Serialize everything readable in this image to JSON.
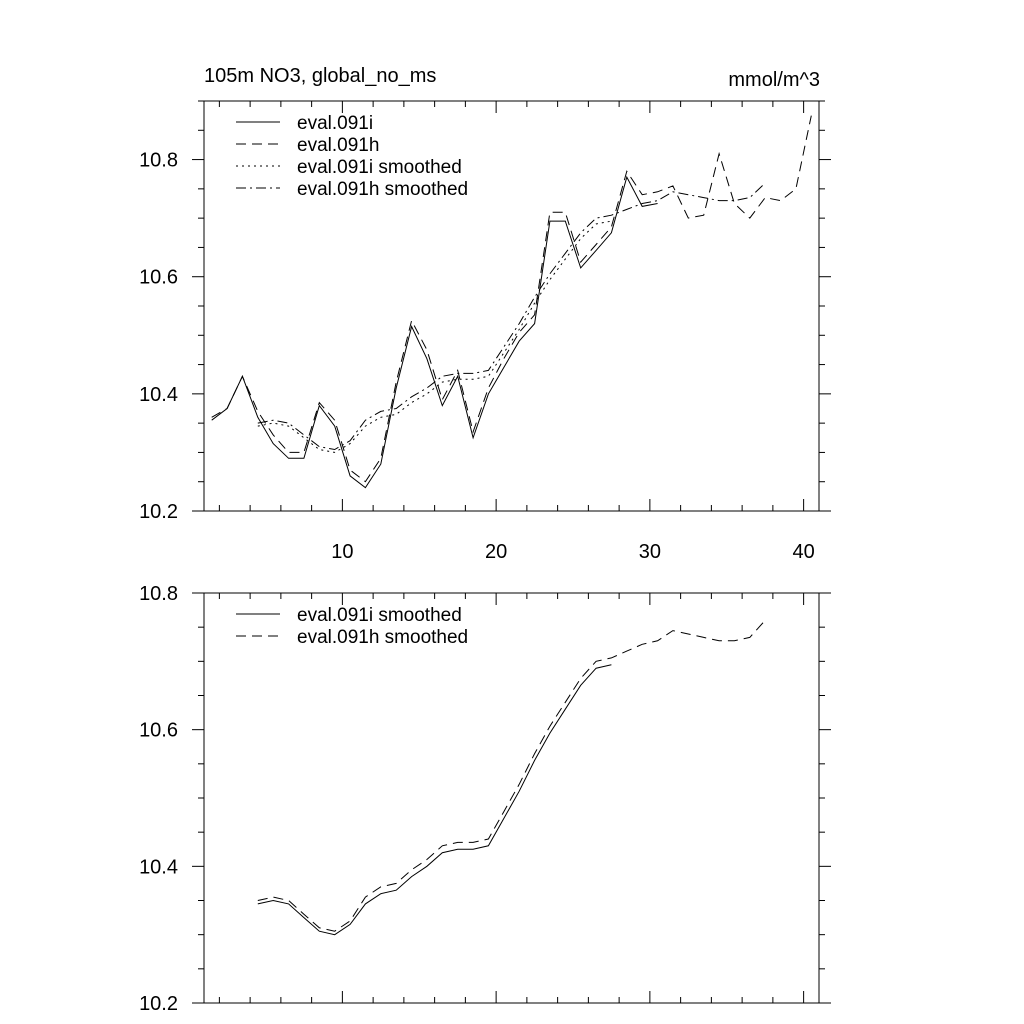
{
  "chart_data": [
    {
      "type": "line",
      "title": "105m NO3, global_no_ms",
      "units": "mmol/m^3",
      "xlim": [
        1,
        41
      ],
      "ylim": [
        10.2,
        10.9
      ],
      "x_ticks": [
        10,
        20,
        30,
        40
      ],
      "y_ticks": [
        10.2,
        10.4,
        10.6,
        10.8
      ],
      "legend_position": "top-left",
      "grid": false,
      "series": [
        {
          "name": "eval.091i",
          "style": "solid",
          "x": [
            1.5,
            2.5,
            3.5,
            4.5,
            5.5,
            6.5,
            7.5,
            8.5,
            9.5,
            10.5,
            11.5,
            12.5,
            13.5,
            14.5,
            15.5,
            16.5,
            17.5,
            18.5,
            19.5,
            20.5,
            21.5,
            22.5,
            23.5,
            24.5,
            25.5,
            26.5,
            27.5,
            28.5,
            29.5,
            30.5
          ],
          "y": [
            10.355,
            10.375,
            10.43,
            10.36,
            10.315,
            10.29,
            10.29,
            10.38,
            10.345,
            10.26,
            10.24,
            10.28,
            10.41,
            10.515,
            10.46,
            10.38,
            10.43,
            10.325,
            10.4,
            10.445,
            10.49,
            10.52,
            10.695,
            10.695,
            10.615,
            10.645,
            10.675,
            10.77,
            10.72,
            10.725
          ]
        },
        {
          "name": "eval.091h",
          "style": "dashed",
          "x": [
            1.5,
            2.5,
            3.5,
            4.5,
            5.5,
            6.5,
            7.5,
            8.5,
            9.5,
            10.5,
            11.5,
            12.5,
            13.5,
            14.5,
            15.5,
            16.5,
            17.5,
            18.5,
            19.5,
            20.5,
            21.5,
            22.5,
            23.5,
            24.5,
            25.5,
            26.5,
            27.5,
            28.5,
            29.5,
            30.5,
            31.5,
            32.5,
            33.5,
            34.5,
            35.5,
            36.5,
            37.5,
            38.5,
            39.5,
            40.5
          ],
          "y": [
            10.36,
            10.375,
            10.43,
            10.37,
            10.33,
            10.3,
            10.3,
            10.385,
            10.355,
            10.27,
            10.25,
            10.29,
            10.42,
            10.525,
            10.475,
            10.39,
            10.44,
            10.335,
            10.41,
            10.46,
            10.505,
            10.535,
            10.71,
            10.71,
            10.625,
            10.655,
            10.685,
            10.78,
            10.74,
            10.745,
            10.755,
            10.7,
            10.705,
            10.81,
            10.725,
            10.7,
            10.735,
            10.73,
            10.75,
            10.875
          ]
        },
        {
          "name": "eval.091i smoothed",
          "style": "dotted",
          "x": [
            4.5,
            5.5,
            6.5,
            7.5,
            8.5,
            9.5,
            10.5,
            11.5,
            12.5,
            13.5,
            14.5,
            15.5,
            16.5,
            17.5,
            18.5,
            19.5,
            20.5,
            21.5,
            22.5,
            23.5,
            24.5,
            25.5,
            26.5,
            27.5
          ],
          "y": [
            10.345,
            10.35,
            10.345,
            10.325,
            10.305,
            10.3,
            10.315,
            10.345,
            10.36,
            10.365,
            10.385,
            10.4,
            10.42,
            10.425,
            10.425,
            10.43,
            10.47,
            10.51,
            10.555,
            10.595,
            10.63,
            10.665,
            10.69,
            10.695
          ]
        },
        {
          "name": "eval.091h smoothed",
          "style": "dashdot",
          "x": [
            4.5,
            5.5,
            6.5,
            7.5,
            8.5,
            9.5,
            10.5,
            11.5,
            12.5,
            13.5,
            14.5,
            15.5,
            16.5,
            17.5,
            18.5,
            19.5,
            20.5,
            21.5,
            22.5,
            23.5,
            24.5,
            25.5,
            26.5,
            27.5,
            28.5,
            29.5,
            30.5,
            31.5,
            32.5,
            33.5,
            34.5,
            35.5,
            36.5,
            37.5
          ],
          "y": [
            10.35,
            10.355,
            10.35,
            10.33,
            10.31,
            10.305,
            10.32,
            10.355,
            10.37,
            10.375,
            10.395,
            10.41,
            10.43,
            10.435,
            10.435,
            10.44,
            10.48,
            10.52,
            10.565,
            10.605,
            10.64,
            10.675,
            10.7,
            10.705,
            10.715,
            10.725,
            10.73,
            10.745,
            10.74,
            10.735,
            10.73,
            10.73,
            10.735,
            10.76
          ]
        }
      ]
    },
    {
      "type": "line",
      "xlim": [
        1,
        41
      ],
      "ylim": [
        10.2,
        10.8
      ],
      "x_ticks": [
        10,
        20,
        30,
        40
      ],
      "y_ticks": [
        10.2,
        10.4,
        10.6,
        10.8
      ],
      "legend_position": "top-left",
      "grid": false,
      "series": [
        {
          "name": "eval.091i smoothed",
          "style": "solid",
          "x": [
            4.5,
            5.5,
            6.5,
            7.5,
            8.5,
            9.5,
            10.5,
            11.5,
            12.5,
            13.5,
            14.5,
            15.5,
            16.5,
            17.5,
            18.5,
            19.5,
            20.5,
            21.5,
            22.5,
            23.5,
            24.5,
            25.5,
            26.5,
            27.5
          ],
          "y": [
            10.345,
            10.35,
            10.345,
            10.325,
            10.305,
            10.3,
            10.315,
            10.345,
            10.36,
            10.365,
            10.385,
            10.4,
            10.42,
            10.425,
            10.425,
            10.43,
            10.47,
            10.51,
            10.555,
            10.595,
            10.63,
            10.665,
            10.69,
            10.695
          ]
        },
        {
          "name": "eval.091h smoothed",
          "style": "dashed",
          "x": [
            4.5,
            5.5,
            6.5,
            7.5,
            8.5,
            9.5,
            10.5,
            11.5,
            12.5,
            13.5,
            14.5,
            15.5,
            16.5,
            17.5,
            18.5,
            19.5,
            20.5,
            21.5,
            22.5,
            23.5,
            24.5,
            25.5,
            26.5,
            27.5,
            28.5,
            29.5,
            30.5,
            31.5,
            32.5,
            33.5,
            34.5,
            35.5,
            36.5,
            37.5
          ],
          "y": [
            10.35,
            10.355,
            10.35,
            10.33,
            10.31,
            10.305,
            10.32,
            10.355,
            10.37,
            10.375,
            10.395,
            10.41,
            10.43,
            10.435,
            10.435,
            10.44,
            10.48,
            10.52,
            10.565,
            10.605,
            10.64,
            10.675,
            10.7,
            10.705,
            10.715,
            10.725,
            10.73,
            10.745,
            10.74,
            10.735,
            10.73,
            10.73,
            10.735,
            10.76
          ]
        }
      ]
    }
  ]
}
